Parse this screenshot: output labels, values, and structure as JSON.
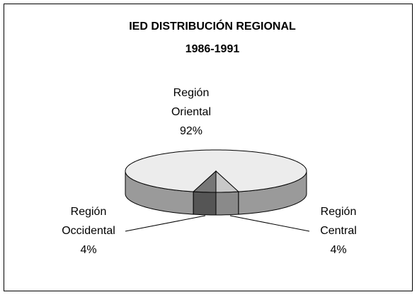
{
  "chart_data": {
    "type": "pie3d",
    "title": "IED DISTRIBUCIÓN REGIONAL",
    "subtitle": "1986-1991",
    "categories": [
      "Región Oriental",
      "Región Occidental",
      "Región Central"
    ],
    "values": [
      92,
      4,
      4
    ],
    "value_labels": [
      "92%",
      "4%",
      "4%"
    ],
    "colors": [
      "#ececec",
      "#777777",
      "#c8c8c8"
    ],
    "side_colors": [
      "#9a9a9a",
      "#555555",
      "#8a8a8a"
    ]
  }
}
